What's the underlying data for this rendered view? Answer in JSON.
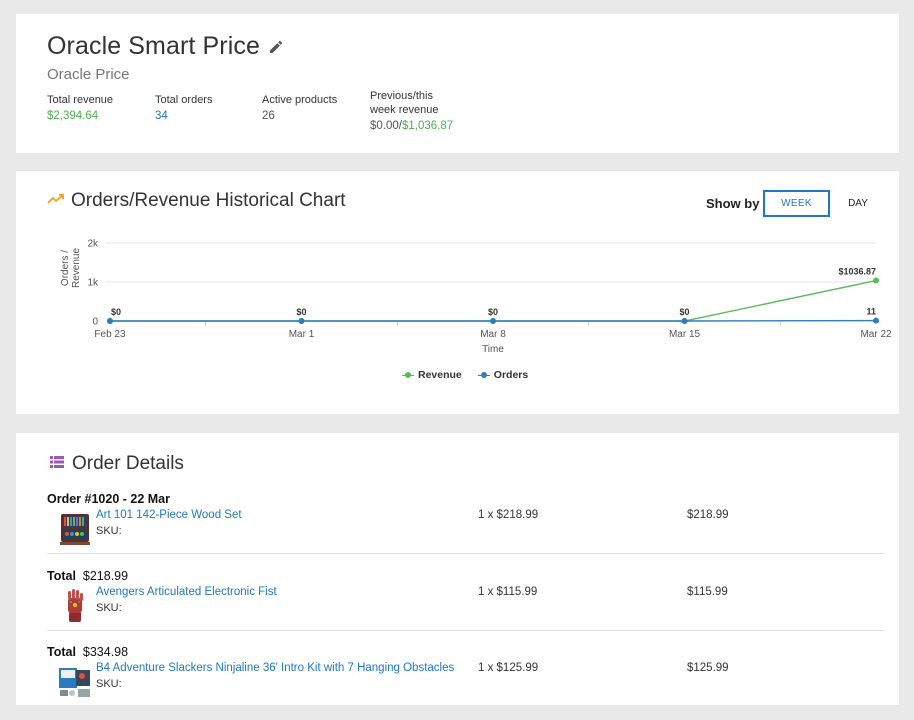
{
  "header": {
    "title": "Oracle Smart Price",
    "subtitle": "Oracle Price",
    "stats": {
      "total_revenue_label": "Total revenue",
      "total_revenue_value": "$2,394.64",
      "total_orders_label": "Total orders",
      "total_orders_value": "34",
      "active_products_label": "Active products",
      "active_products_value": "26",
      "week_rev_label_line1": "Previous/this",
      "week_rev_label_line2": "week revenue",
      "week_rev_prev": "$0.00",
      "week_rev_sep": "/",
      "week_rev_this": "$1,036.87"
    }
  },
  "chart_section": {
    "title": "Orders/Revenue Historical Chart",
    "show_by_label": "Show by",
    "week_button": "WEEK",
    "day_button": "DAY",
    "selected": "WEEK"
  },
  "chart_data": {
    "type": "line",
    "x": [
      "Feb 23",
      "Mar 1",
      "Mar 8",
      "Mar 15",
      "Mar 22"
    ],
    "xlabel": "Time",
    "ylabel": "Orders / Revenue",
    "ylim": [
      0,
      2000
    ],
    "yticks": [
      "0",
      "1k",
      "2k"
    ],
    "grid": true,
    "legend": "bottom-center",
    "series": [
      {
        "name": "Revenue",
        "color": "#5cb85c",
        "values": [
          0,
          0,
          0,
          0,
          1036.87
        ],
        "labels": [
          "$0",
          "$0",
          "$0",
          "$0",
          "$1036.87"
        ]
      },
      {
        "name": "Orders",
        "color": "#2f7dc1",
        "values": [
          0,
          0,
          0,
          0,
          11
        ],
        "labels": [
          "",
          "",
          "",
          "",
          "11"
        ]
      }
    ]
  },
  "orders_section": {
    "title": "Order Details",
    "order_title": "Order #1020 - 22 Mar",
    "blocks": [
      {
        "heading_bold": "Order #1020 - 22 Mar",
        "heading_rest": "",
        "product": "Art 101 142-Piece Wood Set",
        "sku_label": "SKU:",
        "qty": "1 x $218.99",
        "total": "$218.99"
      },
      {
        "heading_bold": "Total",
        "heading_rest": "$218.99",
        "product": "Avengers Articulated Electronic Fist",
        "sku_label": "SKU:",
        "qty": "1 x $115.99",
        "total": "$115.99"
      },
      {
        "heading_bold": "Total",
        "heading_rest": "$334.98",
        "product": "B4 Adventure Slackers Ninjaline 36' Intro Kit with 7 Hanging Obstacles",
        "sku_label": "SKU:",
        "qty": "1 x $125.99",
        "total": "$125.99"
      }
    ]
  },
  "colors": {
    "accent_blue": "#1e78c2",
    "revenue_green": "#4caf50",
    "chart_icon_orange": "#f5a623",
    "list_icon_purple": "#9b59b6"
  }
}
